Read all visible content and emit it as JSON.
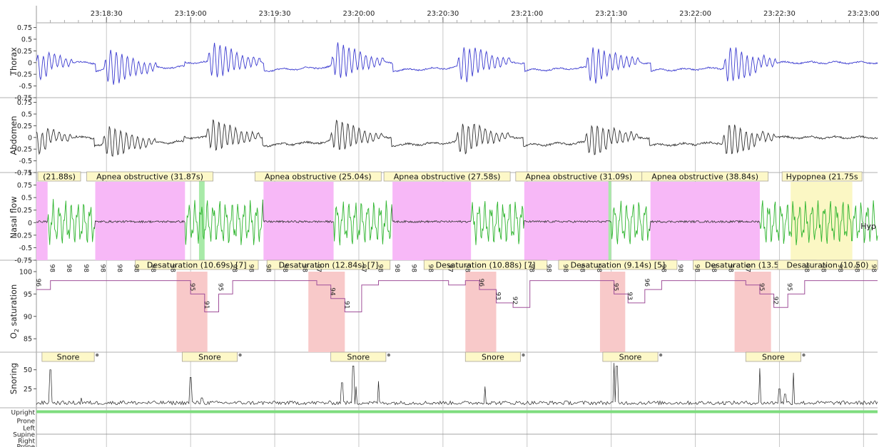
{
  "chart_data": {
    "type": "line",
    "time_axis": {
      "ticks": [
        "23:18:30",
        "23:19:00",
        "23:19:30",
        "23:20:00",
        "23:20:30",
        "23:21:00",
        "23:21:30",
        "23:22:00",
        "23:22:30",
        "23:23:00"
      ],
      "range": [
        "23:18:05",
        "23:23:00"
      ],
      "grid": true
    },
    "panels": [
      {
        "id": "thorax",
        "label": "Thorax",
        "ylim": [
          -0.75,
          0.85
        ],
        "ticks": [
          "0.75",
          "0.5",
          "0.25",
          "0",
          "-0.25",
          "-0.5",
          "-0.75"
        ],
        "color": "#3b3bd0"
      },
      {
        "id": "abdomen",
        "label": "Abdomen",
        "ylim": [
          -0.75,
          0.85
        ],
        "ticks": [
          "0.75",
          "0.5",
          "0.25",
          "0",
          "-0.25",
          "-0.5",
          "-0.75"
        ],
        "color": "#333333"
      },
      {
        "id": "nasal",
        "label": "Nasal flow",
        "ylim": [
          -0.75,
          1
        ],
        "ticks": [
          "1",
          "0.75",
          "0.5",
          "0.25",
          "0",
          "-0.25",
          "-0.5",
          "-0.75"
        ],
        "color": "#333333",
        "breath_color": "#2fb52f"
      },
      {
        "id": "o2",
        "label_main": "O",
        "label_sub": "2",
        "label_rest": " saturation",
        "ylim": [
          82,
          100
        ],
        "ticks": [
          "100",
          "95",
          "90",
          "85"
        ],
        "color": "#a0509a"
      },
      {
        "id": "snoring",
        "label": "Snoring",
        "ylim": [
          0,
          60
        ],
        "ticks": [
          "50",
          "25"
        ],
        "color": "#222222"
      },
      {
        "id": "position",
        "labels": [
          "Upright",
          "Prone",
          "Left",
          "Supine",
          "Right",
          "Prone"
        ],
        "current": "Upright",
        "color": "#7edc7e"
      }
    ],
    "apnea_events": [
      {
        "label": "(21.88s)",
        "start": "23:18:05",
        "end": "23:18:09",
        "type": "apnea"
      },
      {
        "label": "Apnea obstructive (31.87s)",
        "start": "23:18:26",
        "end": "23:18:58",
        "type": "apnea"
      },
      {
        "label": "Apnea obstructive (25.04s)",
        "start": "23:19:26",
        "end": "23:19:51",
        "type": "apnea"
      },
      {
        "label": "Apnea obstructive (27.58s)",
        "start": "23:20:12",
        "end": "23:20:40",
        "type": "apnea"
      },
      {
        "label": "Apnea obstructive (31.09s)",
        "start": "23:20:59",
        "end": "23:21:30",
        "type": "apnea"
      },
      {
        "label": "Apnea obstructive (38.84s)",
        "start": "23:21:44",
        "end": "23:22:23",
        "type": "apnea"
      },
      {
        "label": "Hypopnea (21.75s",
        "start": "23:22:34",
        "end": "23:22:56",
        "type": "hypopnea"
      },
      {
        "label": "Hyp",
        "start": "23:23:00",
        "end": "23:23:00",
        "type": "hypopnea"
      }
    ],
    "breath_markers": [
      {
        "start": "23:19:03",
        "end": "23:19:05"
      },
      {
        "start": "23:21:29",
        "end": "23:21:30"
      }
    ],
    "desaturation_events": [
      {
        "label": "Desaturation (10.69s) [7]",
        "start": "23:18:55",
        "end": "23:19:06"
      },
      {
        "label": "Desaturation (12.84s) [7]",
        "start": "23:19:42",
        "end": "23:19:55"
      },
      {
        "label": "Desaturation (10.88s) [7]",
        "start": "23:20:38",
        "end": "23:20:49"
      },
      {
        "label": "Desaturation (9.14s) [5]",
        "start": "23:21:26",
        "end": "23:21:35"
      },
      {
        "label": "Desaturation (13.54s) [6]",
        "start": "23:22:14",
        "end": "23:22:27"
      },
      {
        "label": "Desaturation (10.50)",
        "start": "23:23:06",
        "end": "23:23:17"
      }
    ],
    "o2_annotations": [
      {
        "t": "23:18:05",
        "v": "96"
      },
      {
        "t": "23:18:10",
        "v": "98"
      },
      {
        "t": "23:18:16",
        "v": "98"
      },
      {
        "t": "23:18:22",
        "v": "98"
      },
      {
        "t": "23:18:28",
        "v": "98"
      },
      {
        "t": "23:18:34",
        "v": "98"
      },
      {
        "t": "23:18:40",
        "v": "98"
      },
      {
        "t": "23:18:46",
        "v": "98"
      },
      {
        "t": "23:18:53",
        "v": "98"
      },
      {
        "t": "23:19:00",
        "v": "95"
      },
      {
        "t": "23:19:05",
        "v": "91"
      },
      {
        "t": "23:19:10",
        "v": "95"
      },
      {
        "t": "23:19:15",
        "v": "98"
      },
      {
        "t": "23:19:21",
        "v": "98"
      },
      {
        "t": "23:19:27",
        "v": "98"
      },
      {
        "t": "23:19:33",
        "v": "98"
      },
      {
        "t": "23:19:40",
        "v": "98"
      },
      {
        "t": "23:19:45",
        "v": "97"
      },
      {
        "t": "23:19:50",
        "v": "94"
      },
      {
        "t": "23:19:55",
        "v": "91"
      },
      {
        "t": "23:20:01",
        "v": "97"
      },
      {
        "t": "23:20:07",
        "v": "98"
      },
      {
        "t": "23:20:13",
        "v": "98"
      },
      {
        "t": "23:20:19",
        "v": "98"
      },
      {
        "t": "23:20:25",
        "v": "98"
      },
      {
        "t": "23:20:32",
        "v": "97"
      },
      {
        "t": "23:20:38",
        "v": "98"
      },
      {
        "t": "23:20:43",
        "v": "96"
      },
      {
        "t": "23:20:49",
        "v": "93"
      },
      {
        "t": "23:20:55",
        "v": "92"
      },
      {
        "t": "23:21:01",
        "v": "98"
      },
      {
        "t": "23:21:07",
        "v": "98"
      },
      {
        "t": "23:21:13",
        "v": "98"
      },
      {
        "t": "23:21:19",
        "v": "98"
      },
      {
        "t": "23:21:25",
        "v": "98"
      },
      {
        "t": "23:21:31",
        "v": "95"
      },
      {
        "t": "23:21:36",
        "v": "93"
      },
      {
        "t": "23:21:42",
        "v": "96"
      },
      {
        "t": "23:21:48",
        "v": "98"
      },
      {
        "t": "23:21:54",
        "v": "98"
      },
      {
        "t": "23:22:00",
        "v": "98"
      },
      {
        "t": "23:22:06",
        "v": "98"
      },
      {
        "t": "23:22:12",
        "v": "98"
      },
      {
        "t": "23:22:18",
        "v": "97"
      },
      {
        "t": "23:22:23",
        "v": "95"
      },
      {
        "t": "23:22:28",
        "v": "92"
      },
      {
        "t": "23:22:33",
        "v": "95"
      },
      {
        "t": "23:22:39",
        "v": "98"
      },
      {
        "t": "23:22:45",
        "v": "98"
      },
      {
        "t": "23:22:51",
        "v": "98"
      },
      {
        "t": "23:22:57",
        "v": "98"
      },
      {
        "t": "23:23:03",
        "v": "98"
      },
      {
        "t": "23:23:09",
        "v": "98"
      },
      {
        "t": "23:23:15",
        "v": "98"
      },
      {
        "t": "23:23:21",
        "v": "96"
      },
      {
        "t": "23:23:27",
        "v": "91"
      },
      {
        "t": "23:23:33",
        "v": "92"
      },
      {
        "t": "23:23:39",
        "v": "94"
      }
    ],
    "snore_events": [
      {
        "label": "Snore",
        "start": "23:18:07",
        "end": "23:18:17"
      },
      {
        "label": "Snore",
        "start": "23:18:57",
        "end": "23:19:08"
      },
      {
        "label": "Snore",
        "start": "23:19:50",
        "end": "23:20:01"
      },
      {
        "label": "Snore",
        "start": "23:20:38",
        "end": "23:20:49"
      },
      {
        "label": "Snore",
        "start": "23:21:27",
        "end": "23:21:38"
      },
      {
        "label": "Snore",
        "start": "23:22:18",
        "end": "23:22:29"
      }
    ]
  }
}
